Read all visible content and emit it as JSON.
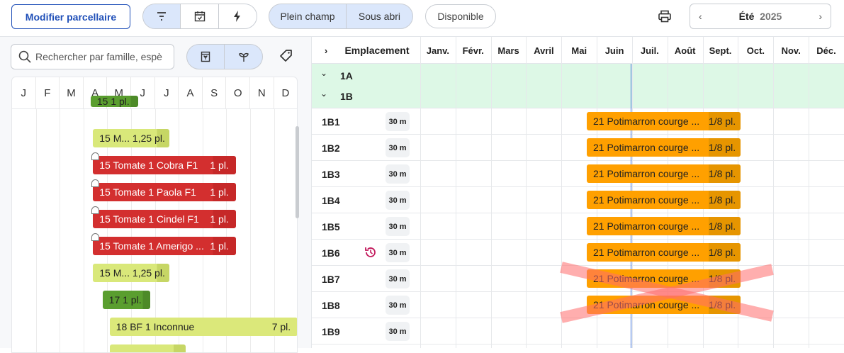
{
  "toolbar": {
    "edit_button": "Modifier parcellaire",
    "view_icons": [
      "filter-lines-icon",
      "calendar-check-icon",
      "lightning-icon"
    ],
    "env_options": [
      "Plein champ",
      "Sous abri"
    ],
    "available": "Disponible",
    "season": "Été",
    "year": "2025"
  },
  "left": {
    "search_placeholder": "Rechercher par famille, espè",
    "months": [
      "J",
      "F",
      "M",
      "A",
      "M",
      "J",
      "J",
      "A",
      "S",
      "O",
      "N",
      "D"
    ],
    "bars": [
      {
        "label": "15  1 pl.",
        "qty": "",
        "color": "#5a9e2f",
        "dark": "#4d8a28",
        "text": "#222",
        "start": 3.3,
        "end": 5.3,
        "clipped": true
      },
      {
        "label": "15 M... 1,25 pl.",
        "qty": "",
        "color": "#d9e87a",
        "dark": "#c6d665",
        "text": "#222",
        "start": 3.4,
        "end": 6.6
      },
      {
        "label": "15 Tomate 1 Cobra F1",
        "qty": "1 pl.",
        "color": "#d32f2f",
        "dark": "#c62828",
        "text": "#fff",
        "start": 3.4,
        "end": 9.4,
        "shelter": true
      },
      {
        "label": "15 Tomate 1 Paola F1",
        "qty": "1 pl.",
        "color": "#d32f2f",
        "dark": "#c62828",
        "text": "#fff",
        "start": 3.4,
        "end": 9.4,
        "shelter": true
      },
      {
        "label": "15 Tomate 1 Cindel F1",
        "qty": "1 pl.",
        "color": "#d32f2f",
        "dark": "#c62828",
        "text": "#fff",
        "start": 3.4,
        "end": 9.4,
        "shelter": true
      },
      {
        "label": "15 Tomate 1 Amerigo ...",
        "qty": "1 pl.",
        "color": "#d32f2f",
        "dark": "#c62828",
        "text": "#fff",
        "start": 3.4,
        "end": 9.4,
        "shelter": true
      },
      {
        "label": "15 M... 1,25 pl.",
        "qty": "",
        "color": "#d9e87a",
        "dark": "#c6d665",
        "text": "#222",
        "start": 3.4,
        "end": 6.6
      },
      {
        "label": "17  1 pl.",
        "qty": "",
        "color": "#5a9e2f",
        "dark": "#4d8a28",
        "text": "#222",
        "start": 3.8,
        "end": 5.8
      },
      {
        "label": "18 BF 1 Inconnue",
        "qty": "7 pl.",
        "color": "#dbe87a",
        "dark": "#dbe87a",
        "text": "#222",
        "start": 4.1,
        "end": 12
      },
      {
        "label": "",
        "qty": "",
        "color": "#d9e87a",
        "dark": "#c6d665",
        "text": "#222",
        "start": 4.1,
        "end": 7.3
      }
    ]
  },
  "plan": {
    "header": "Emplacement",
    "months": [
      "Janv.",
      "Févr.",
      "Mars",
      "Avril",
      "Mai",
      "Juin",
      "Juil.",
      "Août",
      "Sept.",
      "Oct.",
      "Nov.",
      "Déc."
    ],
    "groups": [
      "1A",
      "1B"
    ],
    "rows": [
      {
        "name": "1B1",
        "size": "30 m",
        "crop": "21 Potimarron courge ...",
        "qty": "1/8 pl."
      },
      {
        "name": "1B2",
        "size": "30 m",
        "crop": "21 Potimarron courge ...",
        "qty": "1/8 pl."
      },
      {
        "name": "1B3",
        "size": "30 m",
        "crop": "21 Potimarron courge ...",
        "qty": "1/8 pl."
      },
      {
        "name": "1B4",
        "size": "30 m",
        "crop": "21 Potimarron courge ...",
        "qty": "1/8 pl."
      },
      {
        "name": "1B5",
        "size": "30 m",
        "crop": "21 Potimarron courge ...",
        "qty": "1/8 pl."
      },
      {
        "name": "1B6",
        "size": "30 m",
        "crop": "21 Potimarron courge ...",
        "qty": "1/8 pl.",
        "history": true
      },
      {
        "name": "1B7",
        "size": "30 m",
        "crop": "21 Potimarron courge ...",
        "qty": "1/8 pl.",
        "crossed": true
      },
      {
        "name": "1B8",
        "size": "30 m",
        "crop": "21 Potimarron courge ...",
        "qty": "1/8 pl.",
        "crossed": true
      },
      {
        "name": "1B9",
        "size": "30 m"
      }
    ]
  },
  "colors": {
    "accent": "#1f4fb8",
    "group_bg": "#ddf8e6",
    "crop": "#ffa000",
    "cross": "#ff6b6b"
  }
}
